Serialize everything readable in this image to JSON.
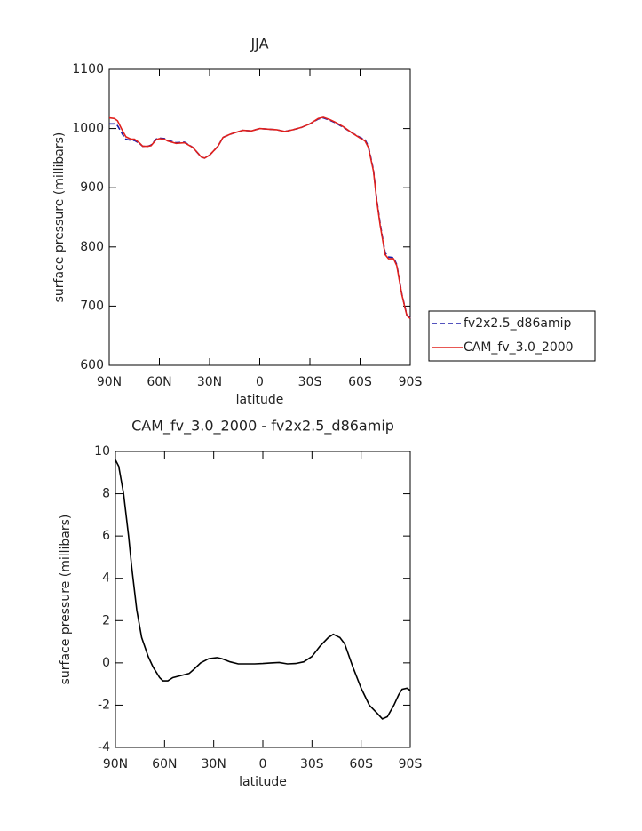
{
  "chart_data": [
    {
      "type": "line",
      "title": "JJA",
      "xlabel": "latitude",
      "ylabel": "surface pressure (millibars)",
      "x": [
        90,
        87,
        85,
        82,
        80,
        77,
        75,
        72,
        70,
        67,
        65,
        62,
        60,
        57,
        55,
        50,
        45,
        40,
        35,
        33,
        30,
        25,
        22,
        18,
        15,
        10,
        5,
        0,
        -5,
        -10,
        -15,
        -20,
        -25,
        -30,
        -35,
        -38,
        -42,
        -45,
        -50,
        -55,
        -60,
        -63,
        -65,
        -68,
        -70,
        -72,
        -75,
        -77,
        -80,
        -82,
        -85,
        -88,
        -90
      ],
      "series": [
        {
          "name": "fv2x2.5_d86amip",
          "color": "#1a1aa8",
          "linestyle": "dashed",
          "values": [
            1008,
            1008,
            1005,
            990,
            982,
            980,
            980,
            975,
            970,
            970,
            972,
            982,
            984,
            983,
            980,
            976,
            977,
            968,
            952,
            950,
            955,
            970,
            985,
            990,
            993,
            997,
            996,
            1000,
            999,
            998,
            995,
            998,
            1002,
            1008,
            1016,
            1018,
            1014,
            1010,
            1002,
            993,
            985,
            981,
            970,
            930,
            880,
            840,
            790,
            783,
            782,
            770,
            720,
            685,
            680
          ]
        },
        {
          "name": "CAM_fv_3.0_2000",
          "color": "#e0201c",
          "linestyle": "solid",
          "values": [
            1018,
            1017,
            1013,
            996,
            986,
            982,
            982,
            976,
            970,
            970,
            971,
            981,
            983,
            982,
            979,
            975,
            976,
            968,
            952,
            950,
            955,
            970,
            985,
            990,
            993,
            997,
            996,
            1000,
            999,
            998,
            995,
            998,
            1002,
            1008,
            1017,
            1019,
            1015,
            1011,
            1003,
            993,
            984,
            979,
            968,
            928,
            878,
            837,
            787,
            780,
            780,
            768,
            719,
            684,
            679
          ]
        }
      ],
      "xlim": [
        90,
        -90
      ],
      "xticks": [
        {
          "value": 90,
          "label": "90N"
        },
        {
          "value": 60,
          "label": "60N"
        },
        {
          "value": 30,
          "label": "30N"
        },
        0,
        {
          "value": -30,
          "label": "30S"
        },
        {
          "value": -60,
          "label": "60S"
        },
        {
          "value": -90,
          "label": "90S"
        }
      ],
      "ylim": [
        600,
        1100
      ],
      "yticks": [
        600,
        700,
        800,
        900,
        1000,
        1100
      ],
      "legend": "right"
    },
    {
      "type": "line",
      "title": "CAM_fv_3.0_2000 - fv2x2.5_d86amip",
      "xlabel": "latitude",
      "ylabel": "surface pressure (millibars)",
      "x": [
        90,
        88,
        85,
        82,
        80,
        77,
        74,
        70,
        67,
        63,
        61,
        58,
        55,
        50,
        45,
        42,
        38,
        33,
        28,
        25,
        20,
        15,
        5,
        0,
        -5,
        -10,
        -15,
        -20,
        -25,
        -30,
        -35,
        -40,
        -43,
        -47,
        -50,
        -55,
        -60,
        -65,
        -70,
        -73,
        -76,
        -80,
        -83,
        -85,
        -88,
        -90
      ],
      "series": [
        {
          "color": "#000000",
          "linestyle": "solid",
          "values": [
            9.6,
            9.3,
            8,
            6,
            4.5,
            2.5,
            1.2,
            0.3,
            -0.2,
            -0.7,
            -0.85,
            -0.85,
            -0.7,
            -0.6,
            -0.5,
            -0.3,
            0,
            0.2,
            0.25,
            0.2,
            0.05,
            -0.05,
            -0.05,
            -0.03,
            0,
            0.02,
            -0.05,
            -0.03,
            0.05,
            0.3,
            0.8,
            1.2,
            1.35,
            1.2,
            0.9,
            -0.2,
            -1.2,
            -2,
            -2.4,
            -2.65,
            -2.55,
            -2,
            -1.5,
            -1.25,
            -1.2,
            -1.3
          ]
        }
      ],
      "xlim": [
        90,
        -90
      ],
      "xticks": [
        {
          "value": 90,
          "label": "90N"
        },
        {
          "value": 60,
          "label": "60N"
        },
        {
          "value": 30,
          "label": "30N"
        },
        0,
        {
          "value": -30,
          "label": "30S"
        },
        {
          "value": -60,
          "label": "60S"
        },
        {
          "value": -90,
          "label": "90S"
        }
      ],
      "ylim": [
        -4,
        10
      ],
      "yticks": [
        -4,
        -2,
        0,
        2,
        4,
        6,
        8,
        10
      ]
    }
  ]
}
